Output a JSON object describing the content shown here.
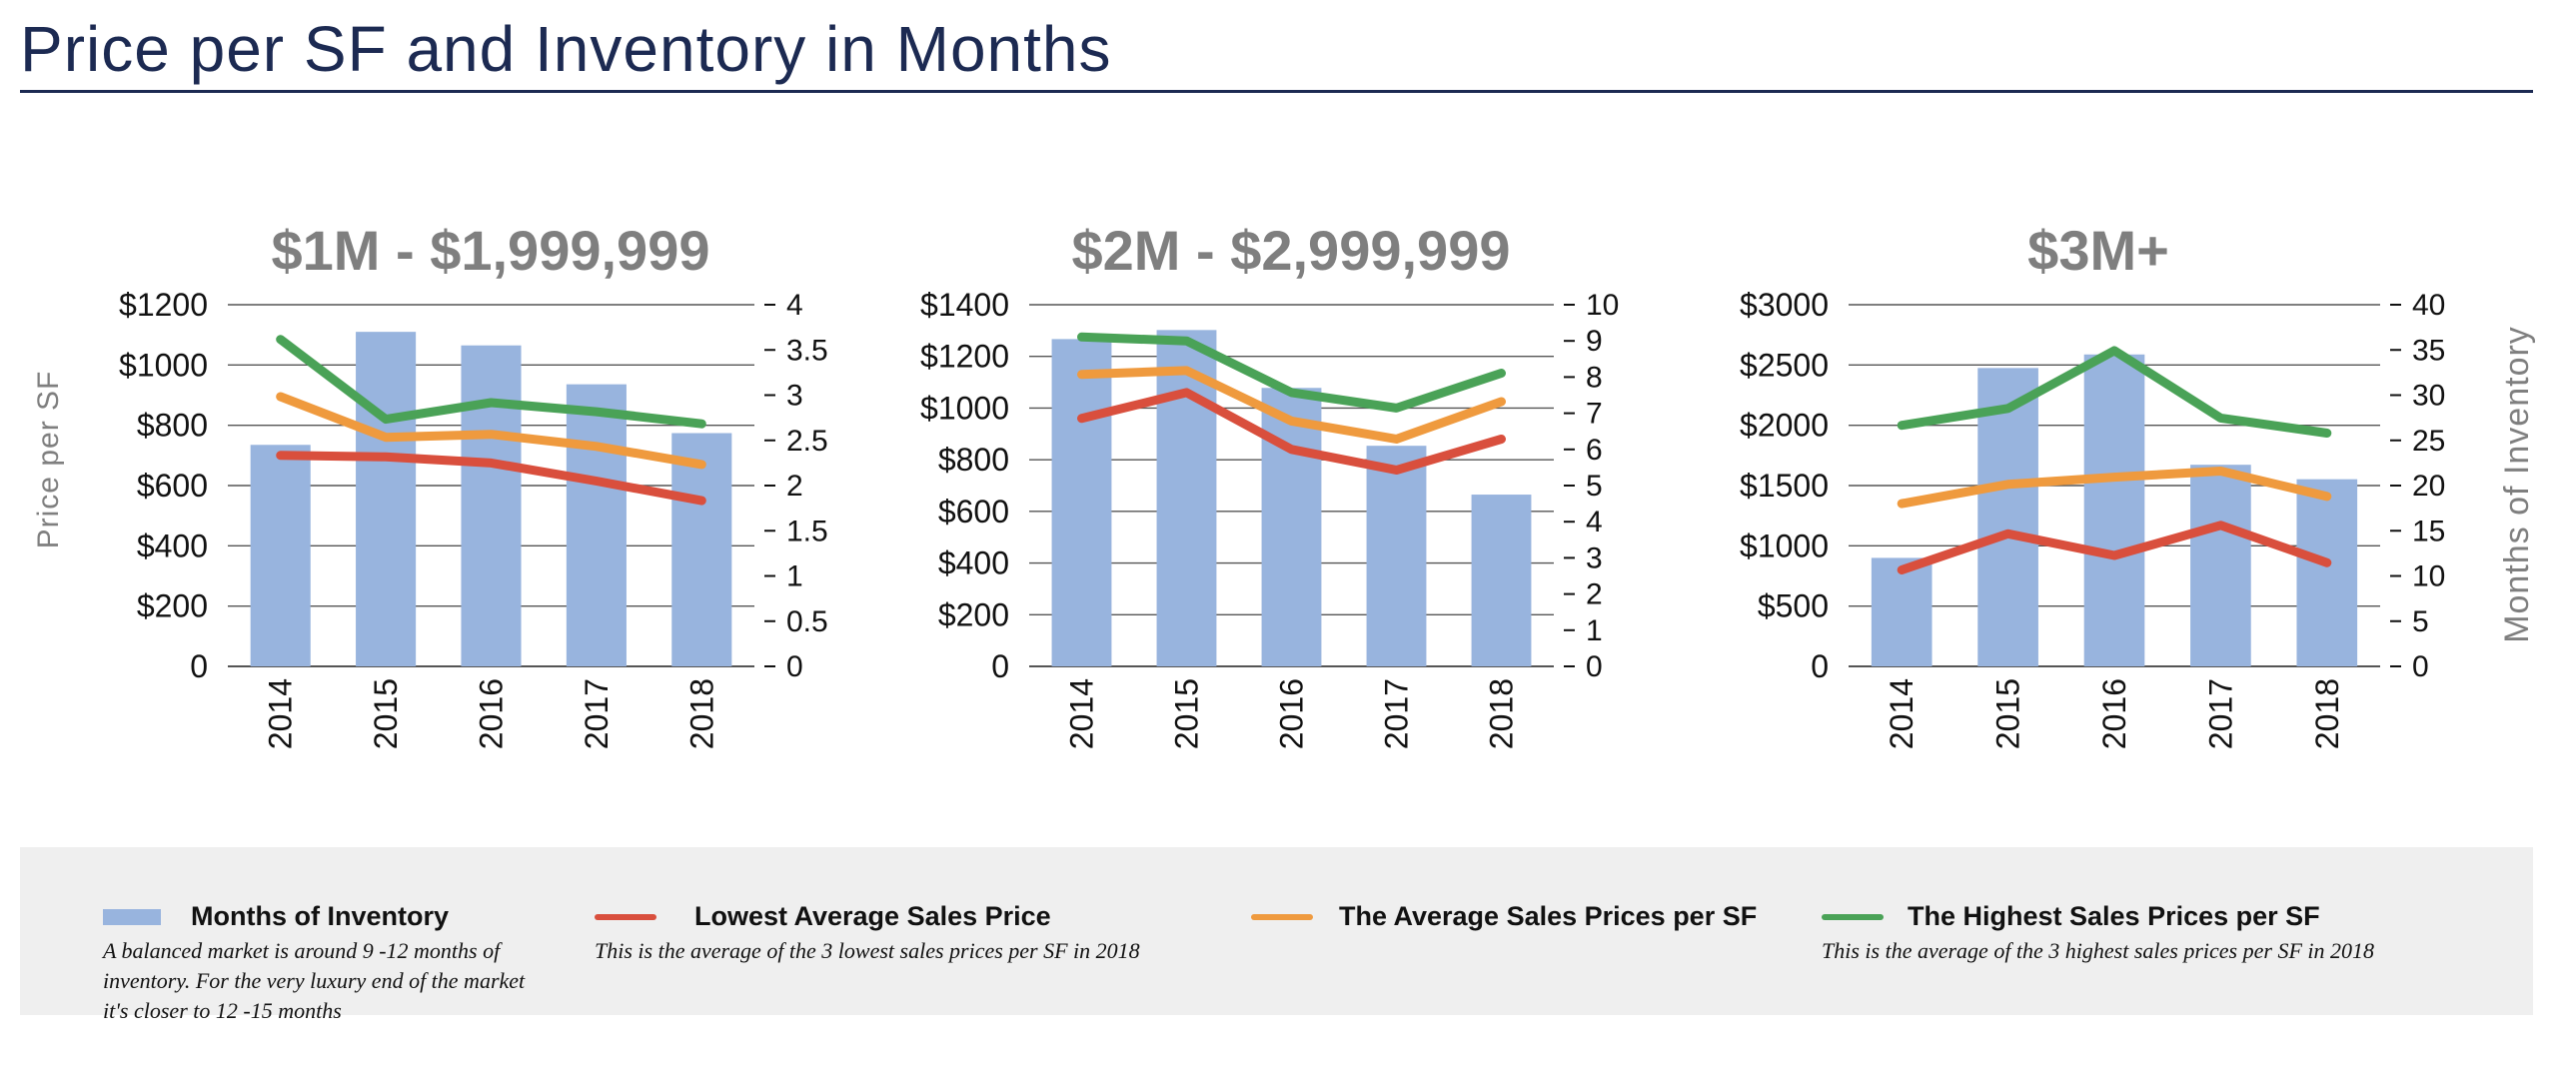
{
  "page": {
    "title": "Price per SF and Inventory in Months"
  },
  "axis_titles": {
    "left": "Price per SF",
    "right": "Months of Inventory"
  },
  "colors": {
    "bars": "#98b4de",
    "lowest": "#d94f3d",
    "average": "#ef9a3e",
    "highest": "#4aa257",
    "title_navy": "#1c2a52",
    "chart_title_gray": "#7f7f7f"
  },
  "legend": {
    "items": [
      {
        "label": "Months of Inventory",
        "note": "A balanced market is around 9 -12 months  of inventory. For the very luxury end of the market it's closer to 12 -15 months"
      },
      {
        "label": "Lowest Average Sales Price",
        "note": "This is the average of the 3 lowest  sales prices per SF in 2018"
      },
      {
        "label": "The Average Sales Prices per SF",
        "note": ""
      },
      {
        "label": "The Highest Sales Prices per SF",
        "note": "This is the average of the 3 highest  sales prices per SF in 2018"
      }
    ]
  },
  "chart_data": [
    {
      "type": "bar",
      "title": "$1M - $1,999,999",
      "categories": [
        "2014",
        "2015",
        "2016",
        "2017",
        "2018"
      ],
      "ylabel": "Price per SF",
      "ylim": [
        0,
        1200
      ],
      "yticks": [
        "0",
        "$200",
        "$400",
        "$600",
        "$800",
        "$1000",
        "$1200"
      ],
      "y2label": "Months of Inventory",
      "y2lim": [
        0,
        4
      ],
      "y2ticks": [
        "0",
        "0.5",
        "1",
        "1.5",
        "2",
        "2.5",
        "3",
        "3.5",
        "4"
      ],
      "grid": true,
      "bars": {
        "name": "Months of Inventory",
        "axis": "right",
        "values": [
          2.45,
          3.7,
          3.55,
          3.12,
          2.58
        ]
      },
      "series": [
        {
          "name": "Lowest Average Sales Price",
          "axis": "left",
          "values": [
            700,
            695,
            675,
            615,
            550
          ]
        },
        {
          "name": "The Average Sales Prices per SF",
          "axis": "left",
          "values": [
            895,
            760,
            770,
            730,
            670
          ]
        },
        {
          "name": "The Highest Sales Prices per SF",
          "axis": "left",
          "values": [
            1085,
            820,
            875,
            845,
            805
          ]
        }
      ]
    },
    {
      "type": "bar",
      "title": "$2M - $2,999,999",
      "categories": [
        "2014",
        "2015",
        "2016",
        "2017",
        "2018"
      ],
      "ylabel": "Price per SF",
      "ylim": [
        0,
        1400
      ],
      "yticks": [
        "0",
        "$200",
        "$400",
        "$600",
        "$800",
        "$1000",
        "$1200",
        "$1400"
      ],
      "y2label": "Months of Inventory",
      "y2lim": [
        0,
        10
      ],
      "y2ticks": [
        "0",
        "1",
        "2",
        "3",
        "4",
        "5",
        "6",
        "7",
        "8",
        "9",
        "10"
      ],
      "grid": true,
      "bars": {
        "name": "Months of Inventory",
        "axis": "right",
        "values": [
          9.05,
          9.3,
          7.7,
          6.1,
          4.75
        ]
      },
      "series": [
        {
          "name": "Lowest Average Sales Price",
          "axis": "left",
          "values": [
            960,
            1060,
            840,
            760,
            880
          ]
        },
        {
          "name": "The Average Sales Prices per SF",
          "axis": "left",
          "values": [
            1130,
            1145,
            950,
            880,
            1025
          ]
        },
        {
          "name": "The Highest Sales Prices per SF",
          "axis": "left",
          "values": [
            1275,
            1260,
            1060,
            1000,
            1135
          ]
        }
      ]
    },
    {
      "type": "bar",
      "title": "$3M+",
      "categories": [
        "2014",
        "2015",
        "2016",
        "2017",
        "2018"
      ],
      "ylabel": "Price per SF",
      "ylim": [
        0,
        3000
      ],
      "yticks": [
        "0",
        "$500",
        "$1000",
        "$1500",
        "$2000",
        "$2500",
        "$3000"
      ],
      "y2label": "Months of Inventory",
      "y2lim": [
        0,
        40
      ],
      "y2ticks": [
        "0",
        "5",
        "10",
        "15",
        "20",
        "25",
        "30",
        "35",
        "40"
      ],
      "grid": true,
      "bars": {
        "name": "Months of Inventory",
        "axis": "right",
        "values": [
          12,
          33,
          34.5,
          22.3,
          20.7
        ]
      },
      "series": [
        {
          "name": "Lowest Average Sales Price",
          "axis": "left",
          "values": [
            800,
            1100,
            920,
            1170,
            860
          ]
        },
        {
          "name": "The Average Sales Prices per SF",
          "axis": "left",
          "values": [
            1350,
            1510,
            1570,
            1620,
            1410
          ]
        },
        {
          "name": "The Highest Sales Prices per SF",
          "axis": "left",
          "values": [
            2000,
            2140,
            2620,
            2060,
            1935
          ]
        }
      ]
    }
  ]
}
